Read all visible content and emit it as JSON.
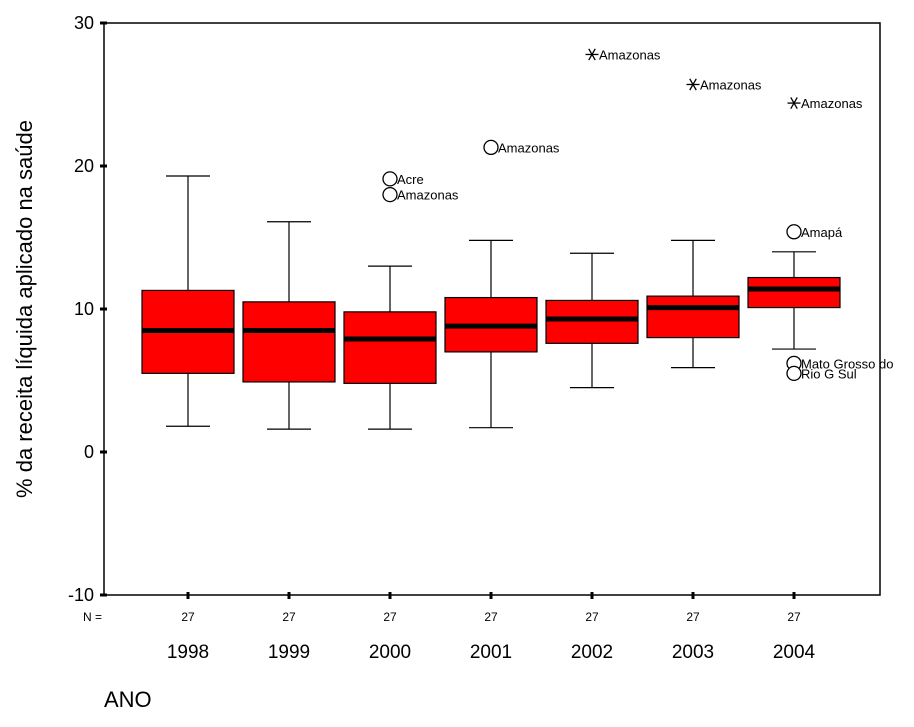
{
  "chart_data": {
    "type": "boxplot",
    "ylabel": "% da receita líquida aplicado na saúde",
    "xlabel": "ANO",
    "ylim": [
      -10,
      30
    ],
    "yticks": [
      -10,
      0,
      10,
      20,
      30
    ],
    "grid": false,
    "n_prefix": "N =",
    "categories": [
      "1998",
      "1999",
      "2000",
      "2001",
      "2002",
      "2003",
      "2004"
    ],
    "n": [
      "27",
      "27",
      "27",
      "27",
      "27",
      "27",
      "27"
    ],
    "box_color": "#ff0000",
    "boxes": [
      {
        "category": "1998",
        "whisker_low": 1.8,
        "q1": 5.5,
        "median": 8.5,
        "q3": 11.3,
        "whisker_high": 19.3
      },
      {
        "category": "1999",
        "whisker_low": 1.6,
        "q1": 4.9,
        "median": 8.5,
        "q3": 10.5,
        "whisker_high": 16.1
      },
      {
        "category": "2000",
        "whisker_low": 1.6,
        "q1": 4.8,
        "median": 7.9,
        "q3": 9.8,
        "whisker_high": 13.0
      },
      {
        "category": "2001",
        "whisker_low": 1.7,
        "q1": 7.0,
        "median": 8.8,
        "q3": 10.8,
        "whisker_high": 14.8
      },
      {
        "category": "2002",
        "whisker_low": 4.5,
        "q1": 7.6,
        "median": 9.3,
        "q3": 10.6,
        "whisker_high": 13.9
      },
      {
        "category": "2003",
        "whisker_low": 5.9,
        "q1": 8.0,
        "median": 10.1,
        "q3": 10.9,
        "whisker_high": 14.8
      },
      {
        "category": "2004",
        "whisker_low": 7.2,
        "q1": 10.1,
        "median": 11.4,
        "q3": 12.2,
        "whisker_high": 14.0
      }
    ],
    "outliers": [
      {
        "category": "2000",
        "value": 19.1,
        "marker": "circle",
        "label": "Acre"
      },
      {
        "category": "2000",
        "value": 18.0,
        "marker": "circle",
        "label": "Amazonas"
      },
      {
        "category": "2001",
        "value": 21.3,
        "marker": "circle",
        "label": "Amazonas"
      },
      {
        "category": "2002",
        "value": 27.8,
        "marker": "star",
        "label": "Amazonas"
      },
      {
        "category": "2003",
        "value": 25.7,
        "marker": "star",
        "label": "Amazonas"
      },
      {
        "category": "2004",
        "value": 24.4,
        "marker": "star",
        "label": "Amazonas"
      },
      {
        "category": "2004",
        "value": 15.4,
        "marker": "circle",
        "label": "Amapá"
      },
      {
        "category": "2004",
        "value": 6.2,
        "marker": "circle",
        "label": "Mato Grosso do"
      },
      {
        "category": "2004",
        "value": 5.5,
        "marker": "circle",
        "label": "Rio G Sul"
      }
    ]
  }
}
